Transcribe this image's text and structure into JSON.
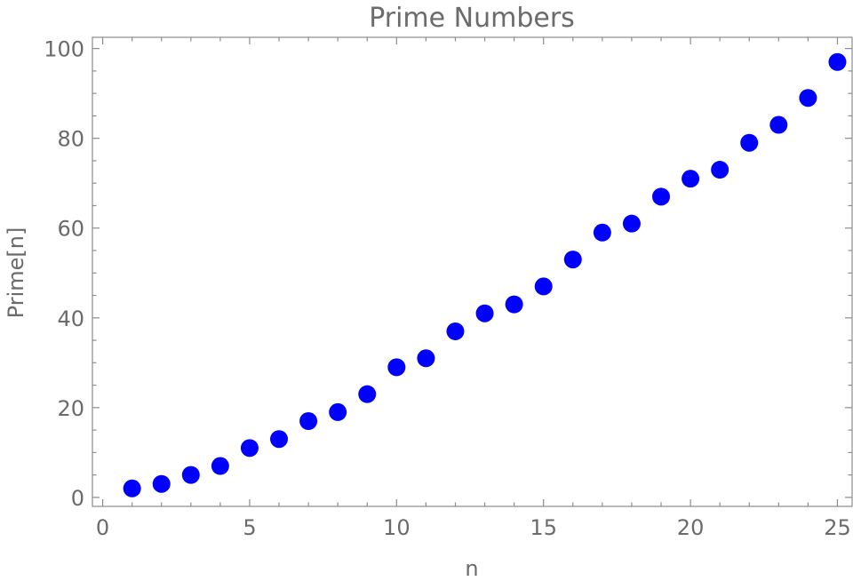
{
  "chart_data": {
    "type": "scatter",
    "title": "Prime Numbers",
    "xlabel": "n",
    "ylabel": "Prime[n]",
    "xlim": [
      -0.35,
      25.5
    ],
    "ylim": [
      -2,
      102.5
    ],
    "x_ticks": [
      0,
      5,
      10,
      15,
      20,
      25
    ],
    "y_ticks": [
      0,
      20,
      40,
      60,
      80,
      100
    ],
    "x_minor_step": 1,
    "y_minor_step": 5,
    "grid": false,
    "marker_color": "#0000ff",
    "series": [
      {
        "x": [
          1,
          2,
          3,
          4,
          5,
          6,
          7,
          8,
          9,
          10,
          11,
          12,
          13,
          14,
          15,
          16,
          17,
          18,
          19,
          20,
          21,
          22,
          23,
          24,
          25
        ],
        "y": [
          2,
          3,
          5,
          7,
          11,
          13,
          17,
          19,
          23,
          29,
          31,
          37,
          41,
          43,
          47,
          53,
          59,
          61,
          67,
          71,
          73,
          79,
          83,
          89,
          97
        ]
      }
    ]
  }
}
